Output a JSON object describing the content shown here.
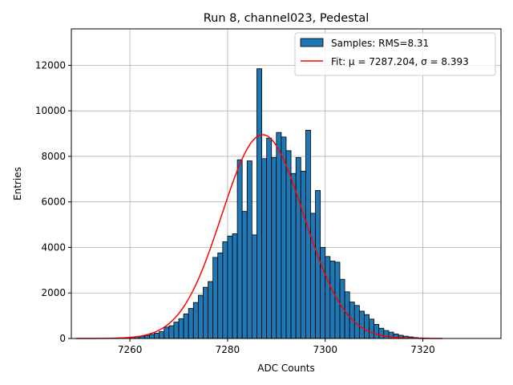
{
  "chart_data": {
    "type": "bar",
    "title": "Run 8, channel023, Pedestal",
    "xlabel": "ADC Counts",
    "ylabel": "Entries",
    "xlim": [
      7248,
      7336
    ],
    "ylim": [
      0,
      13600
    ],
    "xticks": [
      7260,
      7280,
      7300,
      7320
    ],
    "yticks": [
      0,
      2000,
      4000,
      6000,
      8000,
      10000,
      12000
    ],
    "grid": true,
    "legend_position": "top-right",
    "bin_width": 1,
    "bins_start": [
      7255,
      7256,
      7257,
      7258,
      7259,
      7260,
      7261,
      7262,
      7263,
      7264,
      7265,
      7266,
      7267,
      7268,
      7269,
      7270,
      7271,
      7272,
      7273,
      7274,
      7275,
      7276,
      7277,
      7278,
      7279,
      7280,
      7281,
      7282,
      7283,
      7284,
      7285,
      7286,
      7287,
      7288,
      7289,
      7290,
      7291,
      7292,
      7293,
      7294,
      7295,
      7296,
      7297,
      7298,
      7299,
      7300,
      7301,
      7302,
      7303,
      7304,
      7305,
      7306,
      7307,
      7308,
      7309,
      7310,
      7311,
      7312,
      7313,
      7314,
      7315,
      7316,
      7317,
      7318,
      7319,
      7320
    ],
    "counts": [
      5,
      10,
      20,
      30,
      40,
      60,
      80,
      100,
      130,
      180,
      230,
      300,
      500,
      560,
      720,
      870,
      1080,
      1320,
      1580,
      1900,
      2250,
      2500,
      3560,
      3760,
      4250,
      4500,
      4600,
      7850,
      5580,
      7800,
      4550,
      11850,
      7900,
      8800,
      7950,
      9050,
      8850,
      8250,
      7250,
      7950,
      7350,
      9150,
      5500,
      6500,
      4000,
      3600,
      3400,
      3350,
      2600,
      2050,
      1600,
      1450,
      1200,
      1050,
      850,
      620,
      450,
      350,
      280,
      200,
      140,
      100,
      70,
      40,
      25,
      15
    ],
    "series": [
      {
        "name": "Samples: RMS=8.31",
        "kind": "histogram",
        "color": "#1f77b4",
        "edgecolor": "#000000"
      },
      {
        "name": "Fit: μ = 7287.204, σ = 8.393",
        "kind": "gaussian-fit",
        "color": "#ff0000",
        "mu": 7287.204,
        "sigma": 8.393,
        "amplitude": 8950,
        "x_range": [
          7249,
          7324
        ]
      }
    ]
  }
}
